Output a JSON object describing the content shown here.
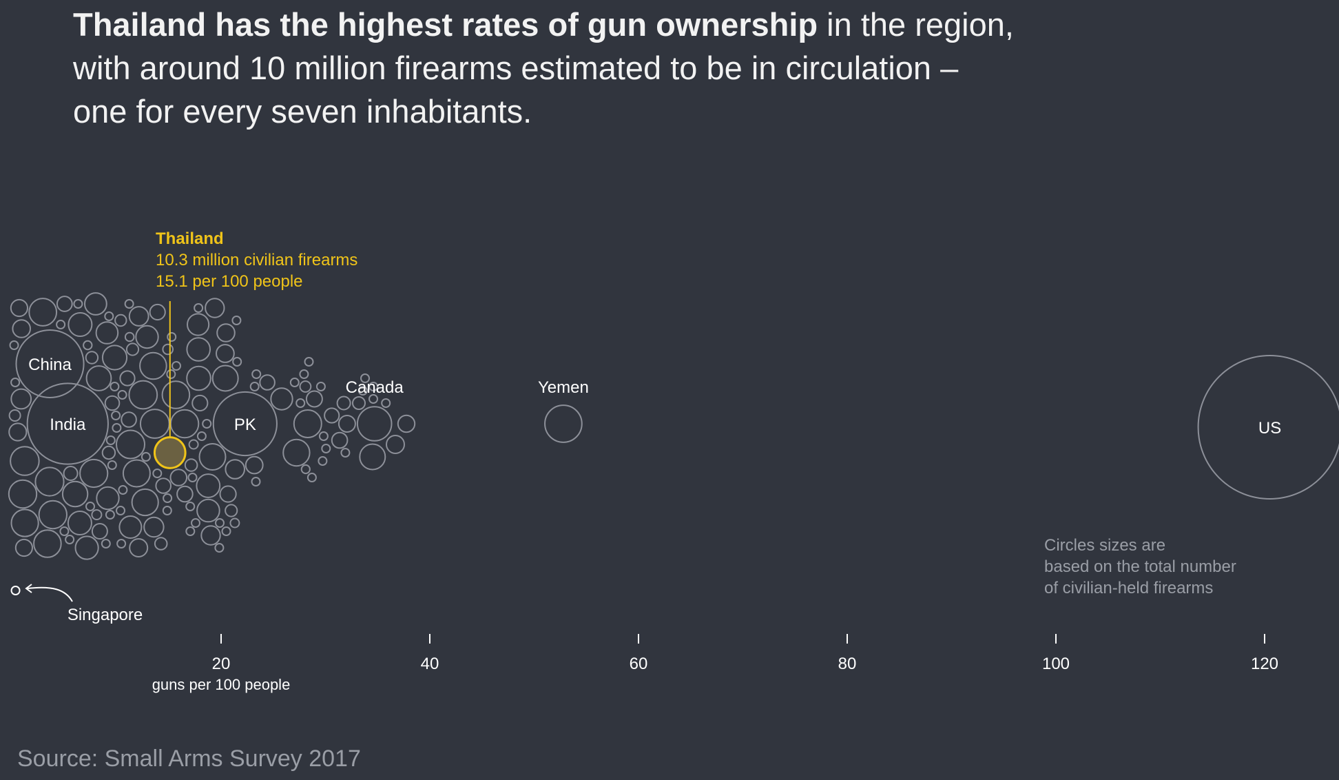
{
  "headline": {
    "bold": "Thailand has the highest rates of gun ownership",
    "rest_line1": " in the region,",
    "line2": "with around 10 million firearms estimated to be in circulation –",
    "line3": "one for every seven inhabitants."
  },
  "source": "Source: Small Arms Survey 2017",
  "colors": {
    "background": "#31353e",
    "bubble_stroke": "#8d9099",
    "highlight": "#f0c419",
    "highlight_fill": "#6b6142",
    "text": "#ffffff",
    "muted_text": "#9a9ea6"
  },
  "chart_data": {
    "type": "scatter",
    "subtype": "beeswarm-bubble",
    "xlabel": "guns per 100 people",
    "xlim": [
      0,
      124
    ],
    "xticks": [
      20,
      40,
      60,
      80,
      100,
      120
    ],
    "size_encoding": "total civilian-held firearms",
    "highlight": {
      "name": "Thailand",
      "line1": "10.3 million civilian firearms",
      "line2": "15.1 per 100 people",
      "x": 15.1,
      "firearms_millions": 10.3
    },
    "labeled_points": [
      {
        "name": "US",
        "x": 120.5,
        "firearms_millions": 393.3
      },
      {
        "name": "Yemen",
        "x": 52.8,
        "firearms_millions": 14.9
      },
      {
        "name": "Canada",
        "x": 34.7,
        "firearms_millions": 12.7
      },
      {
        "name": "PK",
        "x": 22.3,
        "firearms_millions": 43.9
      },
      {
        "name": "India",
        "x": 5.3,
        "firearms_millions": 71.1
      },
      {
        "name": "China",
        "x": 3.6,
        "firearms_millions": 49.7
      },
      {
        "name": "Singapore",
        "x": 0.3,
        "firearms_millions": 0.01
      }
    ],
    "note": [
      "Circles sizes are",
      "based on the total number",
      "of civilian-held firearms"
    ]
  }
}
